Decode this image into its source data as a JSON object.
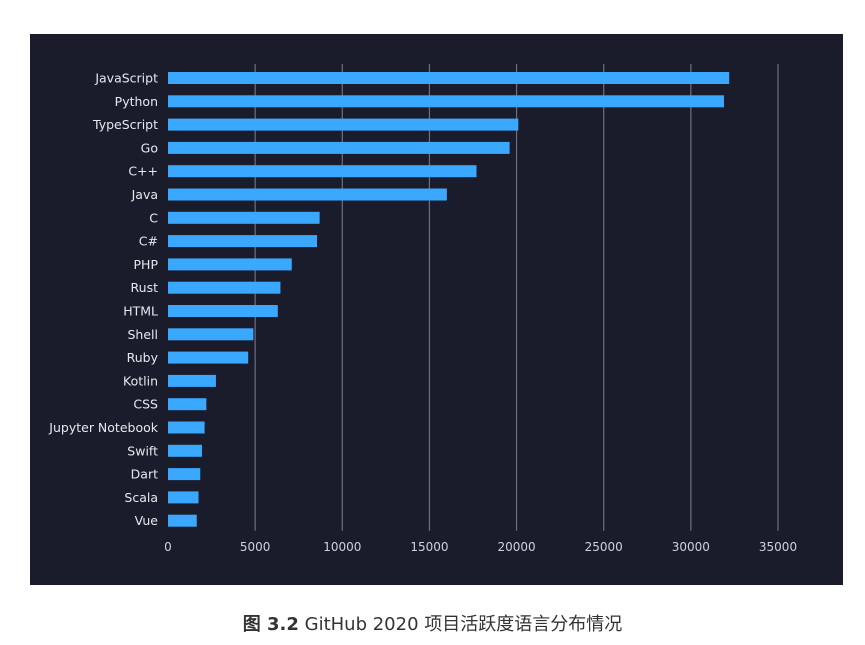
{
  "caption": {
    "figure_label": "图 3.2",
    "text": "GitHub 2020 项目活跃度语言分布情况"
  },
  "colors": {
    "background": "#1a1c2c",
    "bar": "#3aa8ff",
    "grid": "#6b6f80",
    "label": "#e6e8ee",
    "tick": "#cfd2da"
  },
  "chart_data": {
    "type": "bar",
    "orientation": "horizontal",
    "title": "",
    "xlabel": "",
    "ylabel": "",
    "xlim": [
      0,
      35000
    ],
    "xticks": [
      0,
      5000,
      10000,
      15000,
      20000,
      25000,
      30000,
      35000
    ],
    "grid": "vertical",
    "categories": [
      "JavaScript",
      "Python",
      "TypeScript",
      "Go",
      "C++",
      "Java",
      "C",
      "C#",
      "PHP",
      "Rust",
      "HTML",
      "Shell",
      "Ruby",
      "Kotlin",
      "CSS",
      "Jupyter Notebook",
      "Swift",
      "Dart",
      "Scala",
      "Vue"
    ],
    "values": [
      32200,
      31900,
      20100,
      19600,
      17700,
      16000,
      8700,
      8550,
      7100,
      6450,
      6300,
      4900,
      4600,
      2750,
      2200,
      2100,
      1950,
      1850,
      1750,
      1650
    ]
  }
}
